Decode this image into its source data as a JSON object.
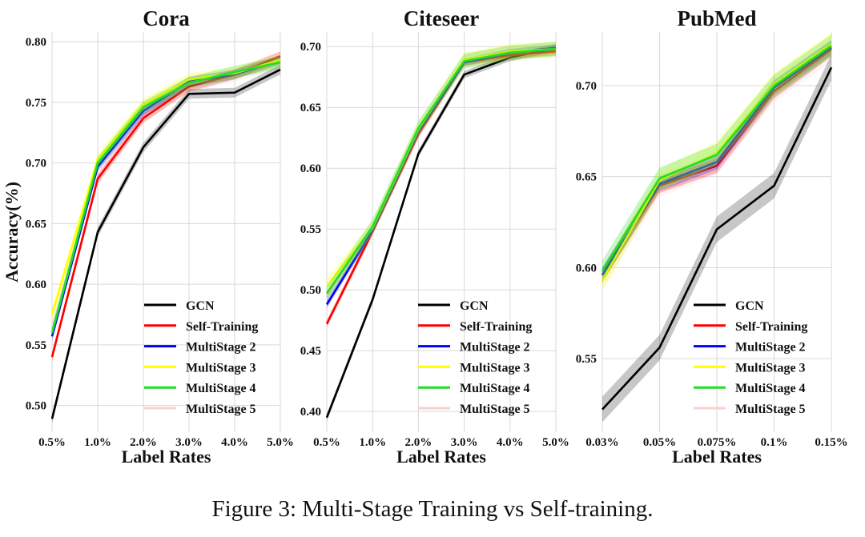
{
  "caption": "Figure 3: Multi-Stage Training vs Self-training.",
  "series_colors": {
    "GCN": "#000000",
    "Self-Training": "#ff0000",
    "MultiStage 2": "#0000ff",
    "MultiStage 3": "#ffff00",
    "MultiStage 4": "#22dd22",
    "MultiStage 5": "#f5d2d2"
  },
  "chart_data": [
    {
      "type": "line",
      "title": "Cora",
      "xlabel": "Label Rates",
      "ylabel": "Accuracy(%)",
      "categories": [
        "0.5%",
        "1.0%",
        "2.0%",
        "3.0%",
        "4.0%",
        "5.0%"
      ],
      "yticks": [
        "0.50",
        "0.55",
        "0.60",
        "0.65",
        "0.70",
        "0.75",
        "0.80"
      ],
      "ylim": [
        0.478,
        0.808
      ],
      "grid": true,
      "legend_position": "bottom-right",
      "series": [
        {
          "name": "GCN",
          "values": [
            0.489,
            0.643,
            0.713,
            0.757,
            0.758,
            0.777
          ],
          "band": 0.004
        },
        {
          "name": "Self-Training",
          "values": [
            0.54,
            0.687,
            0.737,
            0.763,
            0.773,
            0.788
          ],
          "band": 0.004
        },
        {
          "name": "MultiStage 2",
          "values": [
            0.557,
            0.697,
            0.743,
            0.767,
            0.773,
            0.785
          ],
          "band": 0.004
        },
        {
          "name": "MultiStage 3",
          "values": [
            0.575,
            0.703,
            0.748,
            0.769,
            0.774,
            0.785
          ],
          "band": 0.005
        },
        {
          "name": "MultiStage 4",
          "values": [
            0.56,
            0.7,
            0.746,
            0.766,
            0.775,
            0.783
          ],
          "band": 0.005
        },
        {
          "name": "MultiStage 5",
          "values": [
            0.563,
            0.699,
            0.745,
            0.764,
            0.772,
            0.783
          ],
          "band": 0.005
        }
      ]
    },
    {
      "type": "line",
      "title": "Citeseer",
      "xlabel": "Label Rates",
      "ylabel": "",
      "categories": [
        "0.5%",
        "1.0%",
        "2.0%",
        "3.0%",
        "4.0%",
        "5.0%"
      ],
      "yticks": [
        "0.40",
        "0.45",
        "0.50",
        "0.55",
        "0.60",
        "0.65",
        "0.70"
      ],
      "ylim": [
        0.383,
        0.712
      ],
      "grid": true,
      "legend_position": "bottom-right",
      "series": [
        {
          "name": "GCN",
          "values": [
            0.395,
            0.492,
            0.612,
            0.677,
            0.691,
            0.699
          ],
          "band": 0.003
        },
        {
          "name": "Self-Training",
          "values": [
            0.472,
            0.548,
            0.628,
            0.687,
            0.693,
            0.696
          ],
          "band": 0.003
        },
        {
          "name": "MultiStage 2",
          "values": [
            0.488,
            0.549,
            0.63,
            0.687,
            0.695,
            0.699
          ],
          "band": 0.003
        },
        {
          "name": "MultiStage 3",
          "values": [
            0.503,
            0.551,
            0.632,
            0.689,
            0.696,
            0.698
          ],
          "band": 0.006
        },
        {
          "name": "MultiStage 4",
          "values": [
            0.497,
            0.552,
            0.633,
            0.688,
            0.695,
            0.698
          ],
          "band": 0.006
        },
        {
          "name": "MultiStage 5",
          "values": [
            0.494,
            0.55,
            0.631,
            0.688,
            0.694,
            0.698
          ],
          "band": 0.006
        }
      ]
    },
    {
      "type": "line",
      "title": "PubMed",
      "xlabel": "Label Rates",
      "ylabel": "",
      "categories": [
        "0.03%",
        "0.05%",
        "0.075%",
        "0.1%",
        "0.15%"
      ],
      "yticks": [
        "0.55",
        "0.60",
        "0.65",
        "0.70"
      ],
      "ylim": [
        0.5095,
        0.7295
      ],
      "grid": true,
      "legend_position": "bottom-right",
      "series": [
        {
          "name": "GCN",
          "values": [
            0.522,
            0.556,
            0.621,
            0.645,
            0.71
          ],
          "band": 0.007
        },
        {
          "name": "Self-Training",
          "values": [
            0.596,
            0.645,
            0.656,
            0.697,
            0.72
          ],
          "band": 0.004
        },
        {
          "name": "MultiStage 2",
          "values": [
            0.596,
            0.646,
            0.658,
            0.699,
            0.721
          ],
          "band": 0.004
        },
        {
          "name": "MultiStage 3",
          "values": [
            0.593,
            0.648,
            0.663,
            0.701,
            0.723
          ],
          "band": 0.006
        },
        {
          "name": "MultiStage 4",
          "values": [
            0.598,
            0.649,
            0.662,
            0.7,
            0.722
          ],
          "band": 0.006
        },
        {
          "name": "MultiStage 5",
          "values": [
            0.594,
            0.645,
            0.657,
            0.697,
            0.719
          ],
          "band": 0.006
        }
      ]
    }
  ]
}
